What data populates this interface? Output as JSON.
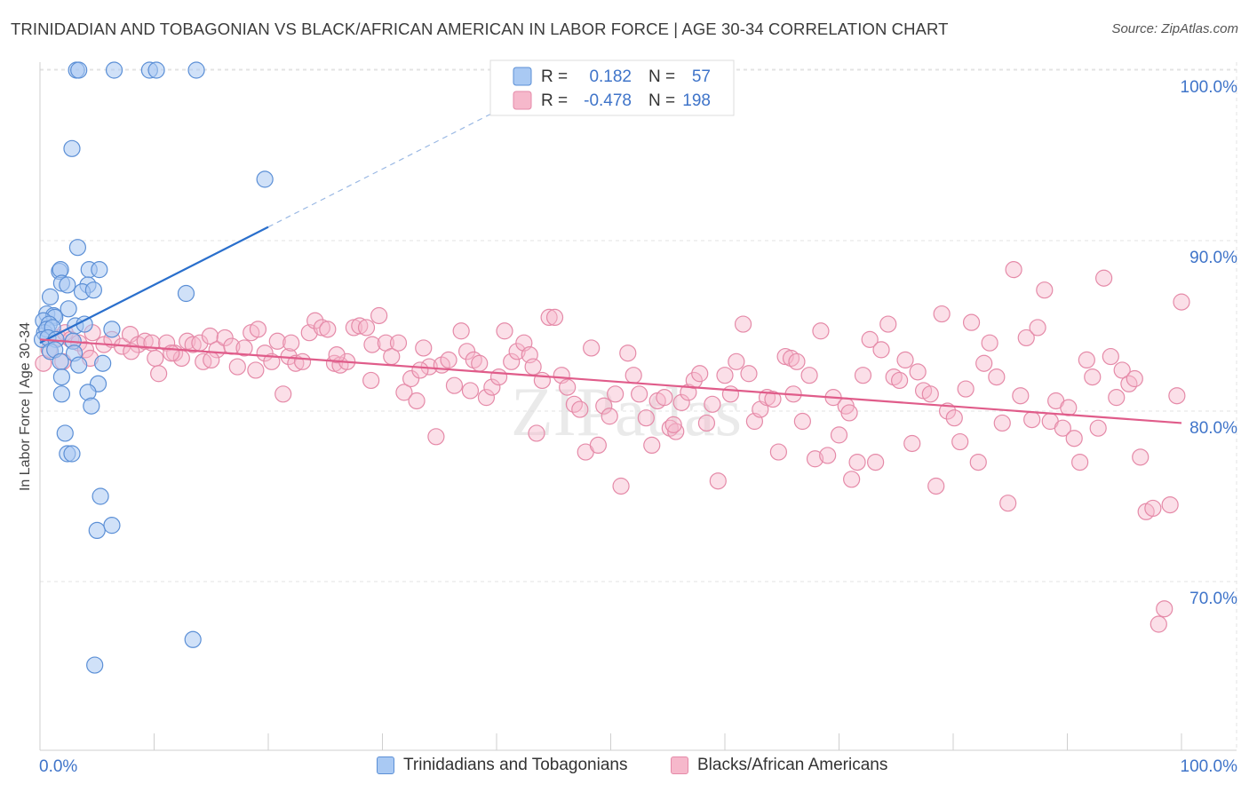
{
  "title": "TRINIDADIAN AND TOBAGONIAN VS BLACK/AFRICAN AMERICAN IN LABOR FORCE | AGE 30-34 CORRELATION CHART",
  "source": "Source: ZipAtlas.com",
  "watermark": "ZIPatlas",
  "colors": {
    "blue_fill": "#a9c9f3",
    "blue_stroke": "#5b8fd6",
    "blue_line": "#2a6fcc",
    "pink_fill": "#f6b8cb",
    "pink_stroke": "#e58aa8",
    "pink_line": "#e05c8a",
    "axis_label": "#3f74c9",
    "grid": "#e3e3e3"
  },
  "legend_box": {
    "rows": [
      {
        "r_label": "R =",
        "r_value": "0.182",
        "n_label": "N =",
        "n_value": "57",
        "series": "blue"
      },
      {
        "r_label": "R =",
        "r_value": "-0.478",
        "n_label": "N =",
        "n_value": "198",
        "series": "pink"
      }
    ]
  },
  "chart_data": {
    "type": "scatter",
    "title": "TRINIDADIAN AND TOBAGONIAN VS BLACK/AFRICAN AMERICAN IN LABOR FORCE | AGE 30-34 CORRELATION CHART",
    "xlabel": "",
    "ylabel": "In Labor Force | Age 30-34",
    "xlim": [
      0,
      100
    ],
    "ylim": [
      60,
      101
    ],
    "x_tick_labels": [
      "0.0%",
      "100.0%"
    ],
    "y_ticks": [
      70,
      80,
      90,
      100
    ],
    "y_tick_labels": [
      "70.0%",
      "80.0%",
      "90.0%",
      "100.0%"
    ],
    "grid": true,
    "legend": [
      "Trinidadians and Tobagonians",
      "Blacks/African Americans"
    ],
    "series": [
      {
        "name": "Trinidadians and Tobagonians",
        "color": "blue",
        "r": 0.182,
        "n": 57,
        "trend": {
          "x0": 0,
          "y0": 84.0,
          "x1": 20,
          "y1": 90.8,
          "dashed_to_x": 45,
          "dashed_to_y": 99.3
        },
        "points": [
          [
            3.2,
            100
          ],
          [
            3.4,
            100
          ],
          [
            6.5,
            100
          ],
          [
            9.6,
            100
          ],
          [
            10.2,
            100
          ],
          [
            13.7,
            100
          ],
          [
            2.8,
            95.4
          ],
          [
            19.7,
            93.6
          ],
          [
            3.3,
            89.6
          ],
          [
            1.7,
            88.2
          ],
          [
            1.8,
            88.3
          ],
          [
            4.3,
            88.3
          ],
          [
            5.2,
            88.3
          ],
          [
            1.9,
            87.5
          ],
          [
            2.4,
            87.4
          ],
          [
            4.2,
            87.4
          ],
          [
            3.7,
            87.0
          ],
          [
            4.7,
            87.1
          ],
          [
            12.8,
            86.9
          ],
          [
            0.9,
            86.7
          ],
          [
            0.6,
            85.7
          ],
          [
            1.2,
            85.6
          ],
          [
            2.5,
            86.0
          ],
          [
            1.3,
            85.5
          ],
          [
            0.3,
            85.3
          ],
          [
            0.8,
            85.1
          ],
          [
            3.1,
            85.0
          ],
          [
            3.9,
            85.1
          ],
          [
            0.4,
            84.6
          ],
          [
            0.6,
            84.8
          ],
          [
            1.1,
            84.9
          ],
          [
            6.3,
            84.8
          ],
          [
            0.2,
            84.2
          ],
          [
            0.7,
            84.3
          ],
          [
            1.4,
            84.2
          ],
          [
            2.9,
            84.1
          ],
          [
            0.9,
            83.5
          ],
          [
            1.3,
            83.6
          ],
          [
            3.0,
            83.4
          ],
          [
            1.8,
            82.9
          ],
          [
            3.4,
            82.7
          ],
          [
            5.5,
            82.8
          ],
          [
            1.9,
            82.0
          ],
          [
            5.1,
            81.6
          ],
          [
            1.9,
            81.0
          ],
          [
            4.2,
            81.1
          ],
          [
            4.5,
            80.3
          ],
          [
            2.2,
            78.7
          ],
          [
            2.4,
            77.5
          ],
          [
            2.8,
            77.5
          ],
          [
            5.3,
            75.0
          ],
          [
            5.0,
            73.0
          ],
          [
            6.3,
            73.3
          ],
          [
            13.4,
            66.6
          ],
          [
            4.8,
            65.1
          ]
        ]
      },
      {
        "name": "Blacks/African Americans",
        "color": "pink",
        "r": -0.478,
        "n": 198,
        "trend": {
          "x0": 0,
          "y0": 84.2,
          "x1": 100,
          "y1": 79.3
        },
        "points": [
          [
            0.3,
            82.8
          ],
          [
            0.8,
            83.6
          ],
          [
            1.6,
            84.3
          ],
          [
            2.2,
            84.6
          ],
          [
            2.7,
            84.2
          ],
          [
            3.4,
            84.0
          ],
          [
            4.0,
            83.6
          ],
          [
            4.6,
            84.6
          ],
          [
            5.6,
            83.9
          ],
          [
            6.3,
            84.2
          ],
          [
            7.2,
            83.8
          ],
          [
            7.9,
            84.5
          ],
          [
            8.6,
            83.9
          ],
          [
            9.2,
            84.1
          ],
          [
            9.8,
            84.0
          ],
          [
            10.1,
            83.1
          ],
          [
            10.4,
            82.2
          ],
          [
            11.1,
            84.0
          ],
          [
            11.8,
            83.4
          ],
          [
            12.4,
            83.1
          ],
          [
            12.9,
            84.1
          ],
          [
            13.4,
            83.9
          ],
          [
            14.0,
            84.0
          ],
          [
            14.3,
            82.9
          ],
          [
            14.9,
            84.4
          ],
          [
            15.5,
            83.6
          ],
          [
            16.2,
            84.3
          ],
          [
            16.8,
            83.8
          ],
          [
            17.3,
            82.6
          ],
          [
            17.9,
            83.7
          ],
          [
            18.5,
            84.6
          ],
          [
            19.1,
            84.8
          ],
          [
            19.7,
            83.4
          ],
          [
            20.3,
            82.9
          ],
          [
            20.8,
            84.1
          ],
          [
            21.3,
            81.0
          ],
          [
            21.8,
            83.2
          ],
          [
            22.4,
            82.8
          ],
          [
            23.0,
            82.9
          ],
          [
            23.6,
            84.6
          ],
          [
            24.1,
            85.3
          ],
          [
            24.7,
            84.9
          ],
          [
            25.2,
            84.8
          ],
          [
            25.8,
            82.8
          ],
          [
            26.3,
            82.7
          ],
          [
            26.9,
            82.9
          ],
          [
            27.5,
            84.9
          ],
          [
            28.0,
            85.0
          ],
          [
            28.6,
            84.9
          ],
          [
            29.1,
            83.9
          ],
          [
            29.7,
            85.6
          ],
          [
            30.3,
            84.0
          ],
          [
            30.8,
            83.2
          ],
          [
            31.4,
            84.0
          ],
          [
            31.9,
            81.1
          ],
          [
            32.5,
            81.9
          ],
          [
            33.0,
            80.6
          ],
          [
            33.6,
            83.7
          ],
          [
            34.1,
            82.6
          ],
          [
            34.7,
            78.5
          ],
          [
            35.2,
            82.7
          ],
          [
            35.8,
            83.0
          ],
          [
            36.3,
            81.5
          ],
          [
            36.9,
            84.7
          ],
          [
            37.4,
            83.5
          ],
          [
            38.0,
            83.0
          ],
          [
            38.5,
            82.8
          ],
          [
            39.1,
            80.8
          ],
          [
            39.6,
            81.4
          ],
          [
            40.2,
            82.0
          ],
          [
            40.7,
            84.7
          ],
          [
            41.3,
            82.9
          ],
          [
            41.8,
            83.5
          ],
          [
            42.4,
            84.0
          ],
          [
            42.9,
            83.3
          ],
          [
            43.5,
            78.7
          ],
          [
            44.0,
            81.8
          ],
          [
            44.6,
            85.5
          ],
          [
            45.1,
            85.5
          ],
          [
            45.7,
            82.1
          ],
          [
            46.2,
            81.4
          ],
          [
            46.8,
            80.4
          ],
          [
            47.3,
            80.1
          ],
          [
            47.8,
            77.6
          ],
          [
            48.3,
            83.7
          ],
          [
            48.9,
            78.0
          ],
          [
            49.4,
            80.3
          ],
          [
            49.9,
            79.7
          ],
          [
            50.4,
            81.0
          ],
          [
            50.9,
            75.6
          ],
          [
            51.5,
            83.4
          ],
          [
            52.0,
            82.1
          ],
          [
            52.5,
            81.0
          ],
          [
            53.1,
            79.6
          ],
          [
            53.6,
            78.0
          ],
          [
            54.1,
            80.6
          ],
          [
            54.7,
            80.8
          ],
          [
            55.2,
            79.0
          ],
          [
            55.7,
            78.8
          ],
          [
            56.2,
            80.5
          ],
          [
            56.8,
            81.1
          ],
          [
            57.3,
            81.8
          ],
          [
            57.8,
            82.2
          ],
          [
            58.4,
            79.3
          ],
          [
            58.9,
            80.4
          ],
          [
            59.4,
            75.9
          ],
          [
            60.0,
            82.1
          ],
          [
            60.5,
            81.0
          ],
          [
            61.0,
            82.9
          ],
          [
            61.6,
            85.1
          ],
          [
            62.1,
            82.2
          ],
          [
            62.6,
            79.4
          ],
          [
            63.1,
            80.1
          ],
          [
            63.7,
            80.8
          ],
          [
            64.2,
            80.7
          ],
          [
            64.7,
            77.6
          ],
          [
            65.3,
            83.2
          ],
          [
            65.8,
            83.1
          ],
          [
            66.3,
            82.9
          ],
          [
            66.8,
            79.4
          ],
          [
            67.4,
            82.1
          ],
          [
            67.9,
            77.2
          ],
          [
            68.4,
            84.7
          ],
          [
            69.0,
            77.4
          ],
          [
            69.5,
            80.8
          ],
          [
            70.0,
            78.6
          ],
          [
            70.6,
            80.3
          ],
          [
            71.1,
            76.0
          ],
          [
            71.6,
            77.0
          ],
          [
            72.1,
            82.1
          ],
          [
            72.7,
            84.2
          ],
          [
            73.2,
            77.0
          ],
          [
            73.7,
            83.6
          ],
          [
            74.3,
            85.1
          ],
          [
            74.8,
            82.0
          ],
          [
            75.3,
            81.8
          ],
          [
            75.8,
            83.0
          ],
          [
            76.4,
            78.1
          ],
          [
            76.9,
            82.3
          ],
          [
            77.4,
            81.2
          ],
          [
            78.0,
            81.0
          ],
          [
            78.5,
            75.6
          ],
          [
            79.0,
            85.7
          ],
          [
            79.5,
            80.0
          ],
          [
            80.1,
            79.6
          ],
          [
            80.6,
            78.2
          ],
          [
            81.1,
            81.3
          ],
          [
            81.6,
            85.2
          ],
          [
            82.2,
            77.0
          ],
          [
            82.7,
            82.8
          ],
          [
            83.2,
            84.0
          ],
          [
            83.8,
            82.0
          ],
          [
            84.3,
            79.3
          ],
          [
            84.8,
            74.6
          ],
          [
            85.3,
            88.3
          ],
          [
            85.9,
            80.9
          ],
          [
            86.4,
            84.3
          ],
          [
            86.9,
            79.5
          ],
          [
            87.4,
            84.9
          ],
          [
            88.0,
            87.1
          ],
          [
            88.5,
            79.4
          ],
          [
            89.0,
            80.6
          ],
          [
            89.6,
            79.0
          ],
          [
            90.1,
            80.2
          ],
          [
            90.6,
            78.4
          ],
          [
            91.1,
            77.0
          ],
          [
            91.7,
            83.0
          ],
          [
            92.2,
            82.0
          ],
          [
            92.7,
            79.0
          ],
          [
            93.2,
            87.8
          ],
          [
            93.8,
            83.2
          ],
          [
            94.3,
            80.8
          ],
          [
            94.8,
            82.4
          ],
          [
            95.4,
            81.6
          ],
          [
            95.9,
            81.9
          ],
          [
            96.4,
            77.3
          ],
          [
            96.9,
            74.1
          ],
          [
            97.5,
            74.3
          ],
          [
            98.0,
            67.5
          ],
          [
            98.5,
            68.4
          ],
          [
            99.0,
            74.5
          ],
          [
            99.6,
            80.9
          ],
          [
            100.0,
            86.4
          ],
          [
            2.0,
            82.9
          ],
          [
            4.4,
            83.1
          ],
          [
            8.0,
            83.5
          ],
          [
            11.5,
            83.4
          ],
          [
            15.0,
            83.0
          ],
          [
            18.9,
            82.4
          ],
          [
            22.0,
            84.0
          ],
          [
            26.0,
            83.3
          ],
          [
            29.0,
            81.8
          ],
          [
            33.3,
            82.4
          ],
          [
            37.7,
            81.2
          ],
          [
            43.2,
            82.6
          ],
          [
            55.5,
            79.2
          ],
          [
            66.0,
            81.0
          ],
          [
            70.9,
            79.9
          ]
        ]
      }
    ]
  }
}
